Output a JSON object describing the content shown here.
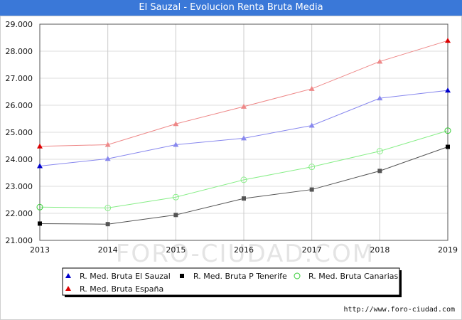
{
  "title": "El Sauzal - Evolucion Renta Bruta Media",
  "watermark": "FORO-CIUDAD.COM",
  "footer_url": "http://www.foro-ciudad.com",
  "chart_data": {
    "type": "line",
    "title": "El Sauzal - Evolucion Renta Bruta Media",
    "x": [
      2013,
      2014,
      2015,
      2016,
      2017,
      2018,
      2019
    ],
    "ylim": [
      21000,
      29000
    ],
    "yticks": [
      21000,
      22000,
      23000,
      24000,
      25000,
      26000,
      27000,
      28000,
      29000
    ],
    "ytick_labels": [
      "21.000",
      "22.000",
      "23.000",
      "24.000",
      "25.000",
      "26.000",
      "27.000",
      "28.000",
      "29.000"
    ],
    "grid": true,
    "legend_position": "bottom",
    "series": [
      {
        "name": "R. Med. Bruta El Sauzal",
        "color": "#0000cc",
        "line_color": "#8888ee",
        "marker": "triangle",
        "values": [
          23750,
          24020,
          24540,
          24780,
          25250,
          26260,
          26550
        ]
      },
      {
        "name": "R. Med. Bruta P Tenerife",
        "color": "#000000",
        "line_color": "#555555",
        "marker": "square",
        "values": [
          21620,
          21600,
          21940,
          22550,
          22880,
          23570,
          24460
        ]
      },
      {
        "name": "R. Med. Bruta Canarias",
        "color": "#33cc33",
        "line_color": "#88ee88",
        "marker": "circle",
        "values": [
          22230,
          22200,
          22600,
          23240,
          23720,
          24300,
          25060
        ]
      },
      {
        "name": "R. Med. Bruta España",
        "color": "#dd0000",
        "line_color": "#ee8888",
        "marker": "triangle",
        "values": [
          24480,
          24540,
          25310,
          25950,
          26610,
          27620,
          28390
        ]
      }
    ]
  }
}
